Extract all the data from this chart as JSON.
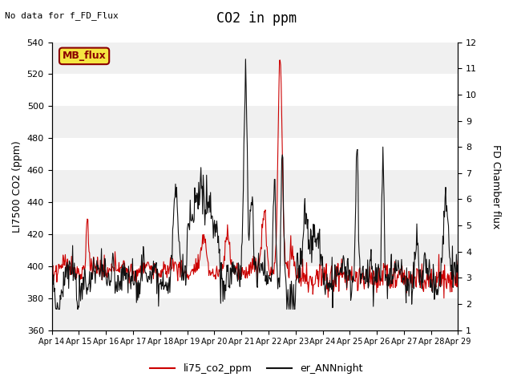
{
  "title": "CO2 in ppm",
  "top_left_text": "No data for f_FD_Flux",
  "legend_box_text": "MB_flux",
  "ylabel_left": "LI7500 CO2 (ppm)",
  "ylabel_right": "FD Chamber flux",
  "ylim_left": [
    360,
    540
  ],
  "ylim_right": [
    1.0,
    12.0
  ],
  "yticks_left": [
    360,
    380,
    400,
    420,
    440,
    460,
    480,
    500,
    520,
    540
  ],
  "yticks_right": [
    1.0,
    2.0,
    3.0,
    4.0,
    5.0,
    6.0,
    7.0,
    8.0,
    9.0,
    10.0,
    11.0,
    12.0
  ],
  "xtick_labels": [
    "Apr 14",
    "Apr 15",
    "Apr 16",
    "Apr 17",
    "Apr 18",
    "Apr 19",
    "Apr 20",
    "Apr 21",
    "Apr 22",
    "Apr 23",
    "Apr 24",
    "Apr 25",
    "Apr 26",
    "Apr 27",
    "Apr 28",
    "Apr 29"
  ],
  "legend_entries": [
    "li75_co2_ppm",
    "er_ANNnight"
  ],
  "legend_colors": [
    "#cc0000",
    "#111111"
  ],
  "fig_bg_color": "#ffffff",
  "plot_bg_color": "#ffffff",
  "band_color_light": "#f0f0f0",
  "band_color_white": "#ffffff",
  "line1_color": "#cc0000",
  "line2_color": "#111111",
  "title_fontsize": 12,
  "axis_fontsize": 9,
  "tick_fontsize": 8,
  "mb_box_facecolor": "#f5e642",
  "mb_box_edgecolor": "#8b0000",
  "mb_text_color": "#8b0000"
}
